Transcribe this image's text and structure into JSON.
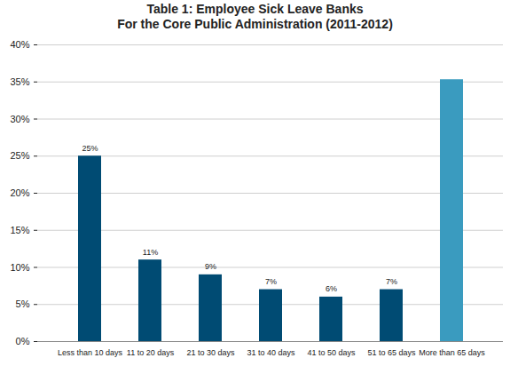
{
  "chart_data": {
    "type": "bar",
    "title": "Table 1: Employee Sick Leave Banks",
    "subtitle": "For the Core Public Administration (2011-2012)",
    "categories": [
      "Less than 10 days",
      "11 to 20 days",
      "21 to 30 days",
      "31 to 40 days",
      "41 to 50 days",
      "51 to 65 days",
      "More than 65 days"
    ],
    "values": [
      25,
      11,
      9,
      7,
      6,
      7,
      35.3
    ],
    "value_labels": [
      "25%",
      "11%",
      "9%",
      "7%",
      "6%",
      "7%",
      null
    ],
    "data_labels": true,
    "colors": [
      "#004b73",
      "#004b73",
      "#004b73",
      "#004b73",
      "#004b73",
      "#004b73",
      "#3a9bbf"
    ],
    "ylim": [
      0,
      40
    ],
    "yticks": [
      {
        "value": 0,
        "label": "0%"
      },
      {
        "value": 5,
        "label": "5%"
      },
      {
        "value": 10,
        "label": "10%"
      },
      {
        "value": 15,
        "label": "15%"
      },
      {
        "value": 20,
        "label": "20%"
      },
      {
        "value": 25,
        "label": "25%"
      },
      {
        "value": 30,
        "label": "30%"
      },
      {
        "value": 35,
        "label": "35%"
      },
      {
        "value": 40,
        "label": "40%"
      }
    ],
    "grid": true
  }
}
